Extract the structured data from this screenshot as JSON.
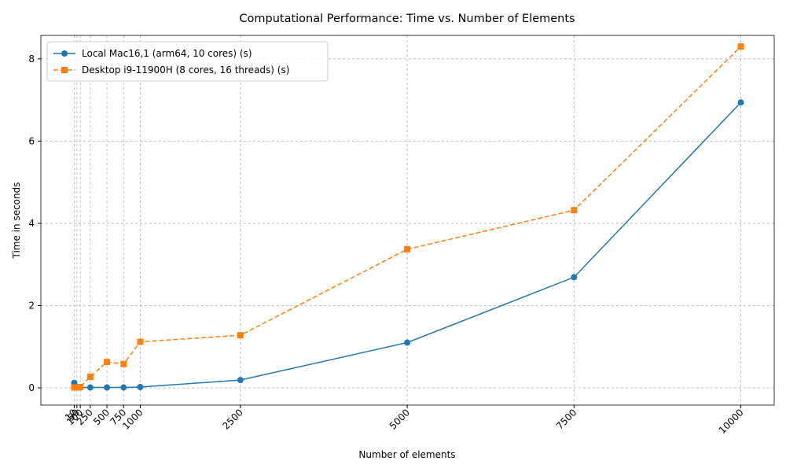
{
  "chart_data": {
    "type": "line",
    "title": "Computational Performance: Time vs. Number of Elements",
    "x_label": "Number of elements",
    "y_label": "Time in seconds",
    "x": [
      10,
      50,
      100,
      250,
      500,
      750,
      1000,
      2500,
      5000,
      7500,
      10000
    ],
    "series": [
      {
        "name": "Local Mac16,1 (arm64, 10 cores) (s)",
        "color": "#1f77b4",
        "marker": "circle",
        "dashed": false,
        "values": [
          0.12,
          0.01,
          0.01,
          0.01,
          0.01,
          0.01,
          0.02,
          0.19,
          1.1,
          2.69,
          6.94
        ]
      },
      {
        "name": "Desktop i9-11900H (8 cores, 16 threads) (s)",
        "color": "#ff7f0e",
        "marker": "square",
        "dashed": true,
        "values": [
          0.01,
          0.01,
          0.02,
          0.27,
          0.63,
          0.58,
          1.12,
          1.28,
          3.37,
          4.32,
          8.3
        ]
      }
    ],
    "xlim": [
      -490,
      10500
    ],
    "ylim": [
      -0.42,
      8.57
    ],
    "xticks": [
      10,
      50,
      100,
      250,
      500,
      750,
      1000,
      2500,
      5000,
      7500,
      10000
    ],
    "yticks": [
      0,
      2,
      4,
      6,
      8
    ],
    "grid": true,
    "legend": "upper-left"
  }
}
